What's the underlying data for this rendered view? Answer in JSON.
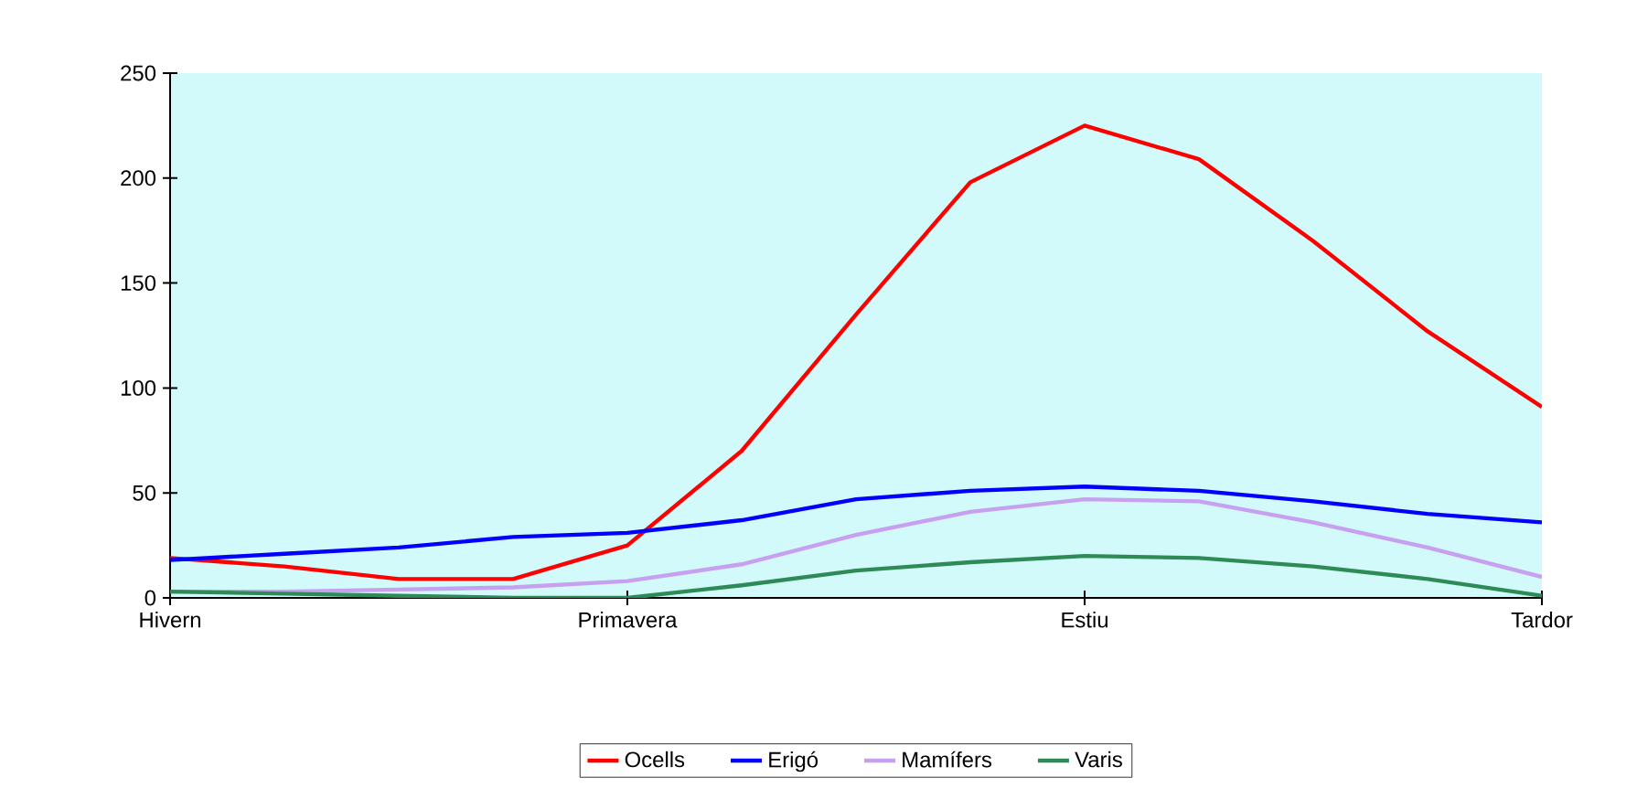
{
  "chart_data": {
    "type": "line",
    "categories": [
      "Hivern",
      null,
      null,
      null,
      "Primavera",
      null,
      null,
      null,
      "Estiu",
      null,
      null,
      null,
      "Tardor"
    ],
    "ylim": [
      0,
      250
    ],
    "yticks": [
      0,
      50,
      100,
      150,
      200,
      250
    ],
    "grid": false,
    "legend": "bottom",
    "marker": "none",
    "line_style": "solid",
    "series": [
      {
        "name": "Ocells",
        "color": "#ff0000",
        "values": [
          19,
          15,
          9,
          9,
          25,
          70,
          135,
          198,
          225,
          209,
          170,
          127,
          91
        ]
      },
      {
        "name": "Erigó",
        "color": "#0000ff",
        "values": [
          18,
          21,
          24,
          29,
          31,
          37,
          47,
          51,
          53,
          51,
          46,
          40,
          36
        ]
      },
      {
        "name": "Mamífers",
        "color": "#c8a0f0",
        "values": [
          3,
          3,
          4,
          5,
          8,
          16,
          30,
          41,
          47,
          46,
          36,
          24,
          10
        ]
      },
      {
        "name": "Varis",
        "color": "#2e8b57",
        "values": [
          3,
          2,
          1,
          0,
          0,
          6,
          13,
          17,
          20,
          19,
          15,
          9,
          1
        ]
      }
    ]
  }
}
